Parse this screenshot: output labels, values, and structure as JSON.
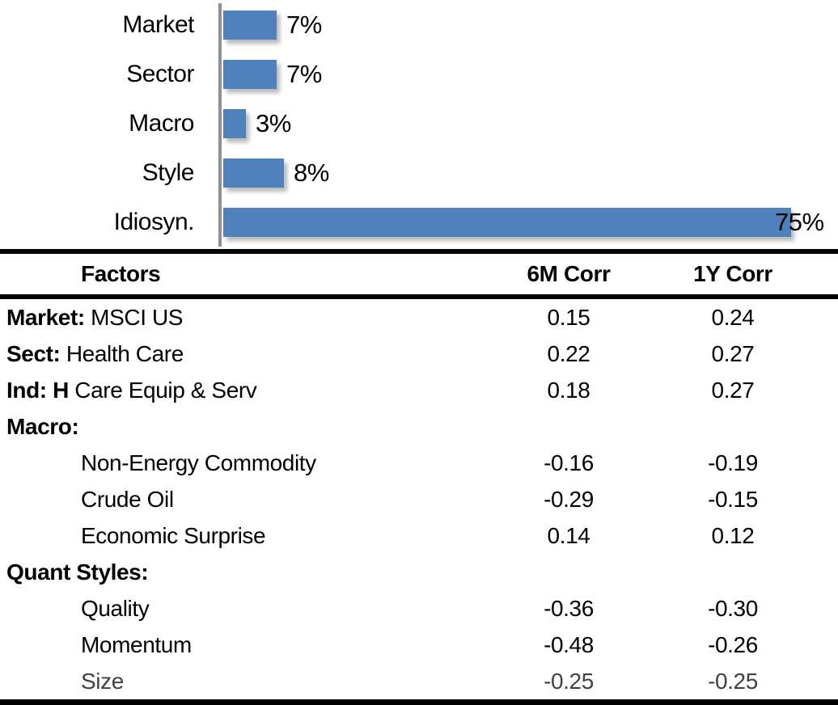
{
  "colors": {
    "bar": "#4F81BD",
    "axis": "#909090",
    "rule": "#000000"
  },
  "chart_data": [
    {
      "type": "bar",
      "orientation": "horizontal",
      "title": "",
      "xlabel": "",
      "ylabel": "",
      "categories": [
        "Market",
        "Sector",
        "Macro",
        "Style",
        "Idiosyn."
      ],
      "values": [
        7,
        7,
        3,
        8,
        75
      ],
      "value_labels": [
        "7%",
        "7%",
        "3%",
        "8%",
        "75%"
      ],
      "xlim": [
        0,
        75
      ],
      "grid": false,
      "legend": false,
      "bar_color": "#4F81BD"
    },
    {
      "type": "table",
      "columns": [
        "Factors",
        "6M Corr",
        "1Y Corr"
      ],
      "rows": [
        {
          "bold": "Market:",
          "rest": " MSCI US",
          "c6": "0.15",
          "c1": "0.24"
        },
        {
          "bold": "Sect:",
          "rest": " Health Care",
          "c6": "0.22",
          "c1": "0.27"
        },
        {
          "bold": "Ind: H",
          "rest": " Care Equip & Serv",
          "c6": "0.18",
          "c1": "0.27"
        },
        {
          "bold": "Macro:",
          "rest": "",
          "c6": "",
          "c1": ""
        },
        {
          "bold": "",
          "rest": "Non-Energy Commodity",
          "c6": "-0.16",
          "c1": "-0.19"
        },
        {
          "bold": "",
          "rest": "Crude Oil",
          "c6": "-0.29",
          "c1": "-0.15"
        },
        {
          "bold": "",
          "rest": "Economic Surprise",
          "c6": "0.14",
          "c1": "0.12"
        },
        {
          "bold": "Quant Styles:",
          "rest": "",
          "c6": "",
          "c1": ""
        },
        {
          "bold": "",
          "rest": "Quality",
          "c6": "-0.36",
          "c1": "-0.30"
        },
        {
          "bold": "",
          "rest": "Momentum",
          "c6": "-0.48",
          "c1": "-0.26"
        },
        {
          "bold": "",
          "rest": "Size",
          "c6": "-0.25",
          "c1": "-0.25"
        }
      ]
    }
  ]
}
